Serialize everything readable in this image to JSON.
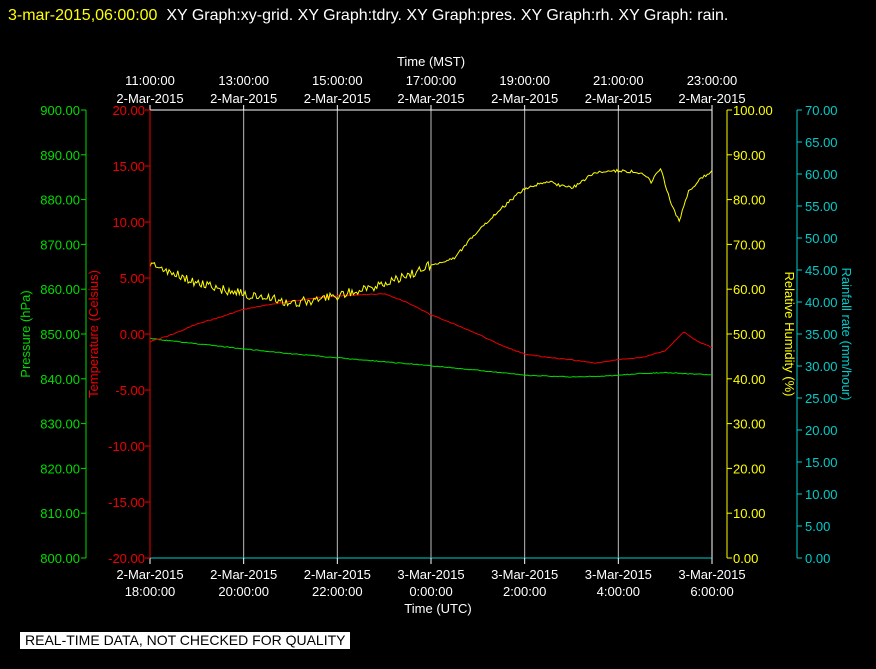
{
  "header": {
    "timestamp": "3-mar-2015,06:00:00",
    "graphs": "XY Graph:xy-grid.  XY Graph:tdry.  XY Graph:pres.  XY Graph:rh.  XY Graph: rain."
  },
  "footer": {
    "disclaimer": "REAL-TIME DATA, NOT CHECKED FOR QUALITY"
  },
  "chart_data": {
    "type": "line",
    "top_axis": {
      "label": "Time (MST)",
      "ticks": [
        {
          "time": "11:00:00",
          "date": "2-Mar-2015"
        },
        {
          "time": "13:00:00",
          "date": "2-Mar-2015"
        },
        {
          "time": "15:00:00",
          "date": "2-Mar-2015"
        },
        {
          "time": "17:00:00",
          "date": "2-Mar-2015"
        },
        {
          "time": "19:00:00",
          "date": "2-Mar-2015"
        },
        {
          "time": "21:00:00",
          "date": "2-Mar-2015"
        },
        {
          "time": "23:00:00",
          "date": "2-Mar-2015"
        }
      ]
    },
    "bottom_axis": {
      "label": "Time (UTC)",
      "ticks": [
        {
          "date": "2-Mar-2015",
          "time": "18:00:00"
        },
        {
          "date": "2-Mar-2015",
          "time": "20:00:00"
        },
        {
          "date": "2-Mar-2015",
          "time": "22:00:00"
        },
        {
          "date": "3-Mar-2015",
          "time": "0:00:00"
        },
        {
          "date": "3-Mar-2015",
          "time": "2:00:00"
        },
        {
          "date": "3-Mar-2015",
          "time": "4:00:00"
        },
        {
          "date": "3-Mar-2015",
          "time": "6:00:00"
        }
      ]
    },
    "x_range_hours_utc": [
      18,
      30
    ],
    "grid": "vertical",
    "axes": {
      "pressure": {
        "label": "Pressure (hPa)",
        "range": [
          800,
          900
        ],
        "color": "#00dd00",
        "ticks": [
          "800.00",
          "810.00",
          "820.00",
          "830.00",
          "840.00",
          "850.00",
          "860.00",
          "870.00",
          "880.00",
          "890.00",
          "900.00"
        ]
      },
      "temperature": {
        "label": "Temperature (Celsius)",
        "range": [
          -20,
          20
        ],
        "color": "#ee0000",
        "ticks": [
          "-20.00",
          "-15.00",
          "-10.00",
          "-5.00",
          "0.00",
          "5.00",
          "10.00",
          "15.00",
          "20.00"
        ]
      },
      "humidity": {
        "label": "Relative Humidity (%)",
        "range": [
          0,
          100
        ],
        "color": "#ffff00",
        "ticks": [
          "0.00",
          "10.00",
          "20.00",
          "30.00",
          "40.00",
          "50.00",
          "60.00",
          "70.00",
          "80.00",
          "90.00",
          "100.00"
        ]
      },
      "rain": {
        "label": "Rainfall rate (mm/hour)",
        "range": [
          0,
          70
        ],
        "color": "#00cccc",
        "ticks": [
          "0.00",
          "5.00",
          "10.00",
          "15.00",
          "20.00",
          "25.00",
          "30.00",
          "35.00",
          "40.00",
          "45.00",
          "50.00",
          "55.00",
          "60.00",
          "65.00",
          "70.00"
        ]
      }
    },
    "series": [
      {
        "name": "tdry",
        "axis": "temperature",
        "color": "#ee0000",
        "x": [
          18.0,
          18.5,
          19.0,
          19.5,
          20.0,
          20.5,
          21.0,
          21.5,
          22.0,
          22.5,
          23.0,
          23.5,
          24.0,
          24.5,
          25.0,
          25.5,
          26.0,
          26.5,
          27.0,
          27.5,
          28.0,
          28.5,
          29.0,
          29.4,
          29.7,
          30.0
        ],
        "y": [
          -0.7,
          0.0,
          0.9,
          1.5,
          2.2,
          2.6,
          2.9,
          3.2,
          3.4,
          3.5,
          3.6,
          2.8,
          1.7,
          0.9,
          0.0,
          -1.0,
          -1.8,
          -2.1,
          -2.3,
          -2.6,
          -2.3,
          -2.1,
          -1.5,
          0.2,
          -0.7,
          -1.2
        ]
      },
      {
        "name": "pres",
        "axis": "pressure",
        "color": "#00dd00",
        "x": [
          18.0,
          19.0,
          20.0,
          21.0,
          22.0,
          23.0,
          24.0,
          25.0,
          26.0,
          26.5,
          27.0,
          27.5,
          28.0,
          28.5,
          29.0,
          29.5,
          30.0
        ],
        "y": [
          849.0,
          847.8,
          846.7,
          845.6,
          844.7,
          843.8,
          842.9,
          841.9,
          840.8,
          840.6,
          840.4,
          840.5,
          840.8,
          841.2,
          841.4,
          841.1,
          840.9
        ]
      },
      {
        "name": "rh",
        "axis": "humidity",
        "color": "#ffff00",
        "x": [
          18.0,
          18.5,
          19.0,
          19.5,
          20.0,
          20.5,
          21.0,
          21.5,
          22.0,
          22.5,
          23.0,
          23.5,
          24.0,
          24.5,
          25.0,
          25.5,
          26.0,
          26.5,
          27.0,
          27.5,
          28.0,
          28.5,
          28.7,
          28.9,
          29.1,
          29.3,
          29.5,
          29.7,
          30.0
        ],
        "y": [
          65.5,
          63.5,
          61.5,
          60.0,
          59.0,
          58.0,
          57.0,
          57.5,
          58.5,
          60.0,
          61.0,
          63.0,
          65.5,
          67.0,
          73.0,
          78.0,
          82.5,
          84.0,
          82.5,
          86.0,
          86.5,
          86.0,
          84.0,
          87.0,
          80.0,
          75.0,
          82.0,
          84.0,
          86.5
        ]
      },
      {
        "name": "rain",
        "axis": "rain",
        "color": "#00cccc",
        "x": [
          18.0,
          30.0
        ],
        "y": [
          0.0,
          0.0
        ]
      }
    ]
  }
}
